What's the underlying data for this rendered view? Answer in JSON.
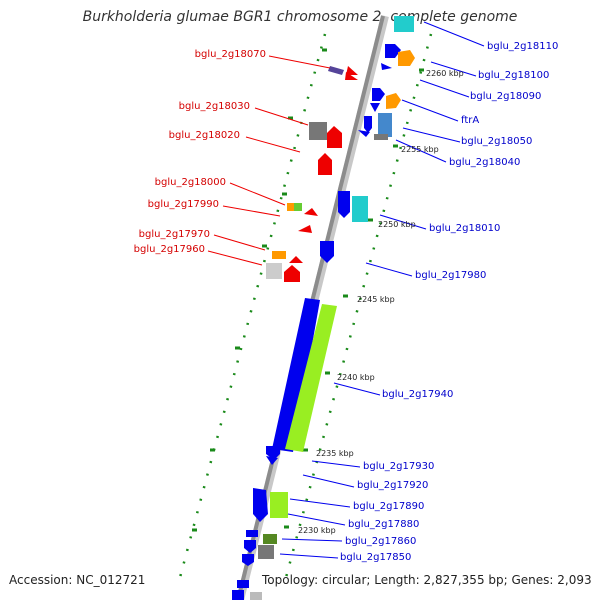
{
  "title": "Burkholderia glumae BGR1 chromosome 2, complete genome",
  "accession": "Accession: NC_012721",
  "topology": "Topology: circular; Length: 2,827,355 bp; Genes: 2,093",
  "colors": {
    "left_gene_label": "#d40000",
    "right_gene_label": "#0000cc",
    "backbone": "#9a9a9a",
    "tick_marks": "#1a8a1a",
    "red_gene": "#ee0000",
    "blue_gene": "#0000ee",
    "lime_gene": "#99ee22",
    "orange_gene": "#ff9900",
    "cyan_gene": "#22cccc",
    "steel_gene": "#4488cc",
    "gray_gene": "#777777"
  },
  "left_labels": [
    {
      "id": "l1",
      "text": "bglu_2g18070"
    },
    {
      "id": "l2",
      "text": "bglu_2g18030"
    },
    {
      "id": "l3",
      "text": "bglu_2g18020"
    },
    {
      "id": "l4",
      "text": "bglu_2g18000"
    },
    {
      "id": "l5",
      "text": "bglu_2g17990"
    },
    {
      "id": "l6",
      "text": "bglu_2g17970"
    },
    {
      "id": "l7",
      "text": "bglu_2g17960"
    }
  ],
  "right_labels": [
    {
      "id": "r1",
      "text": "bglu_2g18110"
    },
    {
      "id": "r2",
      "text": "bglu_2g18100"
    },
    {
      "id": "r3",
      "text": "bglu_2g18090"
    },
    {
      "id": "r4",
      "text": "ftrA"
    },
    {
      "id": "r5",
      "text": "bglu_2g18050"
    },
    {
      "id": "r6",
      "text": "bglu_2g18040"
    },
    {
      "id": "r7",
      "text": "bglu_2g18010"
    },
    {
      "id": "r8",
      "text": "bglu_2g17980"
    },
    {
      "id": "r9",
      "text": "bglu_2g17940"
    },
    {
      "id": "r10",
      "text": "bglu_2g17930"
    },
    {
      "id": "r11",
      "text": "bglu_2g17920"
    },
    {
      "id": "r12",
      "text": "bglu_2g17890"
    },
    {
      "id": "r13",
      "text": "bglu_2g17880"
    },
    {
      "id": "r14",
      "text": "bglu_2g17860"
    },
    {
      "id": "r15",
      "text": "bglu_2g17850"
    }
  ],
  "ticks": [
    {
      "id": "t1",
      "text": "2260 kbp"
    },
    {
      "id": "t2",
      "text": "2255 kbp"
    },
    {
      "id": "t3",
      "text": "2250 kbp"
    },
    {
      "id": "t4",
      "text": "2245 kbp"
    },
    {
      "id": "t5",
      "text": "2240 kbp"
    },
    {
      "id": "t6",
      "text": "2235 kbp"
    },
    {
      "id": "t7",
      "text": "2230 kbp"
    }
  ]
}
